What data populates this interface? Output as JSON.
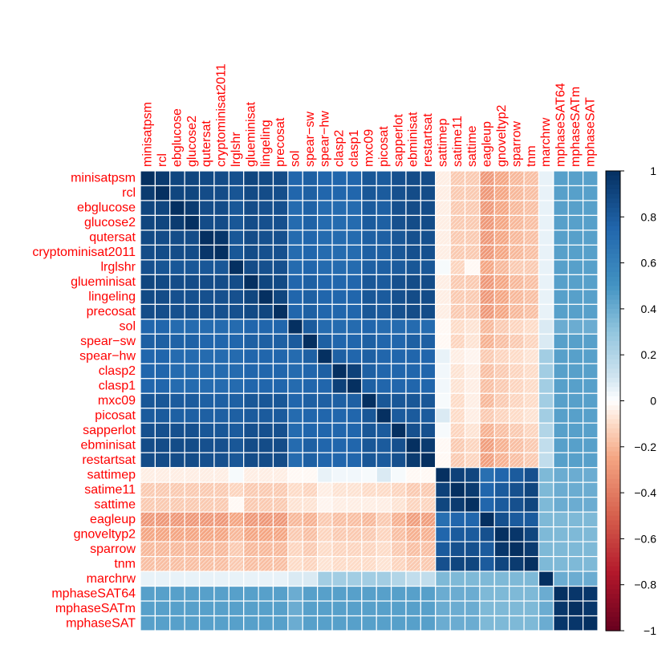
{
  "chart_data": {
    "type": "heatmap",
    "title": "",
    "labels": [
      "minisatpsm",
      "rcl",
      "ebglucose",
      "glucose2",
      "qutersat",
      "cryptominisat2011",
      "lrglshr",
      "glueminisat",
      "lingeling",
      "precosat",
      "sol",
      "spear−sw",
      "spear−hw",
      "clasp2",
      "clasp1",
      "mxc09",
      "picosat",
      "sapperlot",
      "ebminisat",
      "restartsat",
      "sattimep",
      "satime11",
      "sattime",
      "eagleup",
      "gnoveltyp2",
      "sparrow",
      "tnm",
      "marchrw",
      "mphaseSAT64",
      "mphaseSATm",
      "mphaseSAT"
    ],
    "colorbar": {
      "range": [
        -1,
        1
      ],
      "ticks": [
        1,
        0.8,
        0.6,
        0.4,
        0.2,
        0,
        -0.2,
        -0.4,
        -0.6,
        -0.8,
        -1
      ],
      "tick_labels": [
        "1",
        "0.8",
        "0.6",
        "0.4",
        "0.2",
        "0",
        "−0.2",
        "−0.4",
        "−0.6",
        "−0.8",
        "−1"
      ]
    },
    "colors": {
      "negative_end": "#67001f",
      "neutral": "#ffffff",
      "positive_end": "#053061",
      "label": "#ff0000",
      "grid": "#ffffff"
    },
    "negative_pattern": "diagonal-hatch",
    "matrix": [
      [
        1,
        0.95,
        0.9,
        0.9,
        0.88,
        0.87,
        0.85,
        0.9,
        0.88,
        0.87,
        0.75,
        0.78,
        0.75,
        0.75,
        0.75,
        0.82,
        0.8,
        0.85,
        0.87,
        0.87,
        -0.05,
        -0.15,
        -0.15,
        -0.3,
        -0.25,
        -0.2,
        -0.18,
        0.05,
        0.45,
        0.45,
        0.45
      ],
      [
        0.95,
        1,
        0.9,
        0.9,
        0.87,
        0.87,
        0.83,
        0.88,
        0.87,
        0.86,
        0.75,
        0.78,
        0.75,
        0.75,
        0.75,
        0.82,
        0.8,
        0.85,
        0.87,
        0.87,
        -0.05,
        -0.15,
        -0.15,
        -0.3,
        -0.25,
        -0.2,
        -0.18,
        0.05,
        0.45,
        0.45,
        0.45
      ],
      [
        0.9,
        0.9,
        1,
        0.95,
        0.87,
        0.87,
        0.82,
        0.87,
        0.85,
        0.85,
        0.72,
        0.77,
        0.72,
        0.72,
        0.72,
        0.8,
        0.78,
        0.85,
        0.87,
        0.87,
        -0.05,
        -0.15,
        -0.15,
        -0.3,
        -0.25,
        -0.2,
        -0.18,
        0.05,
        0.45,
        0.45,
        0.45
      ],
      [
        0.9,
        0.9,
        0.95,
        1,
        0.87,
        0.87,
        0.82,
        0.87,
        0.85,
        0.85,
        0.72,
        0.77,
        0.72,
        0.72,
        0.72,
        0.8,
        0.78,
        0.85,
        0.87,
        0.87,
        -0.05,
        -0.15,
        -0.15,
        -0.3,
        -0.25,
        -0.2,
        -0.18,
        0.05,
        0.45,
        0.45,
        0.45
      ],
      [
        0.88,
        0.87,
        0.87,
        0.87,
        1,
        0.97,
        0.82,
        0.87,
        0.85,
        0.85,
        0.72,
        0.75,
        0.72,
        0.72,
        0.72,
        0.78,
        0.78,
        0.82,
        0.85,
        0.85,
        -0.05,
        -0.15,
        -0.15,
        -0.3,
        -0.25,
        -0.2,
        -0.18,
        0.05,
        0.45,
        0.45,
        0.45
      ],
      [
        0.87,
        0.87,
        0.87,
        0.87,
        0.97,
        1,
        0.82,
        0.87,
        0.85,
        0.85,
        0.72,
        0.75,
        0.72,
        0.72,
        0.72,
        0.78,
        0.78,
        0.82,
        0.85,
        0.85,
        -0.05,
        -0.15,
        -0.15,
        -0.3,
        -0.25,
        -0.2,
        -0.18,
        0.05,
        0.45,
        0.45,
        0.45
      ],
      [
        0.85,
        0.83,
        0.82,
        0.82,
        0.82,
        0.82,
        1,
        0.87,
        0.85,
        0.85,
        0.72,
        0.75,
        0.72,
        0.72,
        0.72,
        0.78,
        0.78,
        0.8,
        0.82,
        0.82,
        0.02,
        -0.12,
        -0.02,
        -0.25,
        -0.2,
        -0.15,
        -0.15,
        0.05,
        0.45,
        0.45,
        0.45
      ],
      [
        0.9,
        0.88,
        0.87,
        0.87,
        0.87,
        0.87,
        0.87,
        1,
        0.9,
        0.88,
        0.75,
        0.78,
        0.75,
        0.75,
        0.75,
        0.82,
        0.8,
        0.85,
        0.87,
        0.87,
        -0.05,
        -0.15,
        -0.15,
        -0.3,
        -0.25,
        -0.2,
        -0.18,
        0.05,
        0.45,
        0.45,
        0.45
      ],
      [
        0.88,
        0.87,
        0.85,
        0.85,
        0.85,
        0.85,
        0.85,
        0.9,
        1,
        0.9,
        0.75,
        0.78,
        0.75,
        0.75,
        0.75,
        0.82,
        0.8,
        0.85,
        0.87,
        0.87,
        -0.05,
        -0.15,
        -0.15,
        -0.3,
        -0.25,
        -0.2,
        -0.18,
        0.05,
        0.45,
        0.45,
        0.45
      ],
      [
        0.87,
        0.86,
        0.85,
        0.85,
        0.85,
        0.85,
        0.85,
        0.88,
        0.9,
        1,
        0.75,
        0.78,
        0.75,
        0.75,
        0.75,
        0.82,
        0.8,
        0.85,
        0.87,
        0.87,
        -0.05,
        -0.15,
        -0.15,
        -0.3,
        -0.25,
        -0.2,
        -0.18,
        0.05,
        0.45,
        0.45,
        0.45
      ],
      [
        0.75,
        0.75,
        0.72,
        0.72,
        0.72,
        0.72,
        0.72,
        0.75,
        0.75,
        0.75,
        1,
        0.8,
        0.72,
        0.72,
        0.72,
        0.75,
        0.72,
        0.72,
        0.72,
        0.72,
        -0.02,
        -0.1,
        -0.08,
        -0.2,
        -0.15,
        -0.12,
        -0.1,
        0.08,
        0.4,
        0.4,
        0.4
      ],
      [
        0.78,
        0.78,
        0.77,
        0.77,
        0.75,
        0.75,
        0.75,
        0.78,
        0.78,
        0.78,
        0.8,
        1,
        0.78,
        0.75,
        0.75,
        0.78,
        0.75,
        0.75,
        0.78,
        0.78,
        -0.02,
        -0.12,
        -0.08,
        -0.22,
        -0.18,
        -0.15,
        -0.12,
        0.08,
        0.45,
        0.45,
        0.45
      ],
      [
        0.75,
        0.75,
        0.72,
        0.72,
        0.72,
        0.72,
        0.72,
        0.75,
        0.75,
        0.75,
        0.72,
        0.78,
        1,
        0.78,
        0.75,
        0.78,
        0.75,
        0.75,
        0.75,
        0.75,
        0.05,
        -0.05,
        -0.03,
        -0.15,
        -0.12,
        -0.1,
        -0.08,
        0.25,
        0.45,
        0.45,
        0.45
      ],
      [
        0.75,
        0.75,
        0.72,
        0.72,
        0.72,
        0.72,
        0.72,
        0.75,
        0.75,
        0.75,
        0.72,
        0.75,
        0.78,
        1,
        0.92,
        0.78,
        0.75,
        0.75,
        0.75,
        0.75,
        0.03,
        -0.08,
        -0.05,
        -0.18,
        -0.15,
        -0.12,
        -0.1,
        0.25,
        0.45,
        0.45,
        0.45
      ],
      [
        0.75,
        0.75,
        0.72,
        0.72,
        0.72,
        0.72,
        0.72,
        0.75,
        0.75,
        0.75,
        0.72,
        0.75,
        0.75,
        0.92,
        1,
        0.78,
        0.75,
        0.75,
        0.75,
        0.75,
        0.03,
        -0.08,
        -0.05,
        -0.18,
        -0.15,
        -0.12,
        -0.1,
        0.25,
        0.45,
        0.45,
        0.45
      ],
      [
        0.82,
        0.82,
        0.8,
        0.8,
        0.78,
        0.78,
        0.78,
        0.82,
        0.82,
        0.82,
        0.75,
        0.78,
        0.78,
        0.78,
        0.78,
        1,
        0.82,
        0.82,
        0.82,
        0.82,
        0.02,
        -0.1,
        -0.05,
        -0.2,
        -0.15,
        -0.12,
        -0.1,
        0.25,
        0.45,
        0.45,
        0.45
      ],
      [
        0.8,
        0.8,
        0.78,
        0.78,
        0.78,
        0.78,
        0.78,
        0.8,
        0.8,
        0.8,
        0.72,
        0.75,
        0.75,
        0.75,
        0.75,
        0.82,
        1,
        0.8,
        0.8,
        0.8,
        0.08,
        -0.1,
        -0.05,
        -0.15,
        -0.12,
        -0.1,
        -0.08,
        0.25,
        0.45,
        0.45,
        0.45
      ],
      [
        0.85,
        0.85,
        0.85,
        0.85,
        0.82,
        0.82,
        0.8,
        0.85,
        0.85,
        0.85,
        0.72,
        0.75,
        0.75,
        0.75,
        0.75,
        0.82,
        0.8,
        1,
        0.85,
        0.85,
        0.02,
        -0.12,
        -0.08,
        -0.22,
        -0.18,
        -0.15,
        -0.12,
        0.2,
        0.45,
        0.45,
        0.45
      ],
      [
        0.87,
        0.87,
        0.87,
        0.87,
        0.85,
        0.85,
        0.82,
        0.87,
        0.87,
        0.87,
        0.72,
        0.78,
        0.75,
        0.75,
        0.75,
        0.82,
        0.8,
        0.85,
        1,
        0.95,
        -0.02,
        -0.15,
        -0.12,
        -0.28,
        -0.22,
        -0.18,
        -0.15,
        0.15,
        0.45,
        0.45,
        0.45
      ],
      [
        0.87,
        0.87,
        0.87,
        0.87,
        0.85,
        0.85,
        0.82,
        0.87,
        0.87,
        0.87,
        0.72,
        0.78,
        0.75,
        0.75,
        0.75,
        0.82,
        0.8,
        0.85,
        0.95,
        1,
        -0.02,
        -0.15,
        -0.12,
        -0.28,
        -0.22,
        -0.18,
        -0.15,
        0.15,
        0.45,
        0.45,
        0.45
      ],
      [
        -0.05,
        -0.05,
        -0.05,
        -0.05,
        -0.05,
        -0.05,
        0.02,
        -0.05,
        -0.05,
        -0.05,
        -0.02,
        -0.02,
        0.05,
        0.03,
        0.03,
        0.02,
        0.08,
        0.02,
        -0.02,
        -0.02,
        1,
        0.92,
        0.9,
        0.7,
        0.75,
        0.8,
        0.85,
        0.35,
        0.4,
        0.4,
        0.4
      ],
      [
        -0.15,
        -0.15,
        -0.15,
        -0.15,
        -0.15,
        -0.15,
        -0.12,
        -0.15,
        -0.15,
        -0.15,
        -0.1,
        -0.12,
        -0.05,
        -0.08,
        -0.08,
        -0.1,
        -0.1,
        -0.12,
        -0.15,
        -0.15,
        0.92,
        1,
        0.95,
        0.75,
        0.8,
        0.85,
        0.9,
        0.35,
        0.4,
        0.4,
        0.4
      ],
      [
        -0.15,
        -0.15,
        -0.15,
        -0.15,
        -0.15,
        -0.15,
        -0.02,
        -0.15,
        -0.15,
        -0.15,
        -0.08,
        -0.08,
        -0.03,
        -0.05,
        -0.05,
        -0.05,
        -0.05,
        -0.08,
        -0.12,
        -0.12,
        0.9,
        0.95,
        1,
        0.75,
        0.8,
        0.85,
        0.9,
        0.35,
        0.4,
        0.4,
        0.4
      ],
      [
        -0.3,
        -0.3,
        -0.3,
        -0.3,
        -0.3,
        -0.3,
        -0.25,
        -0.3,
        -0.3,
        -0.3,
        -0.2,
        -0.22,
        -0.15,
        -0.18,
        -0.18,
        -0.2,
        -0.15,
        -0.22,
        -0.28,
        -0.28,
        0.7,
        0.75,
        0.75,
        1,
        0.85,
        0.8,
        0.8,
        0.35,
        0.35,
        0.35,
        0.35
      ],
      [
        -0.25,
        -0.25,
        -0.25,
        -0.25,
        -0.25,
        -0.25,
        -0.2,
        -0.25,
        -0.25,
        -0.25,
        -0.15,
        -0.18,
        -0.12,
        -0.15,
        -0.15,
        -0.15,
        -0.12,
        -0.18,
        -0.22,
        -0.22,
        0.75,
        0.8,
        0.8,
        0.85,
        1,
        0.97,
        0.9,
        0.35,
        0.35,
        0.35,
        0.35
      ],
      [
        -0.2,
        -0.2,
        -0.2,
        -0.2,
        -0.2,
        -0.2,
        -0.15,
        -0.2,
        -0.2,
        -0.2,
        -0.12,
        -0.15,
        -0.1,
        -0.12,
        -0.12,
        -0.12,
        -0.1,
        -0.15,
        -0.18,
        -0.18,
        0.8,
        0.85,
        0.85,
        0.8,
        0.97,
        1,
        0.95,
        0.35,
        0.35,
        0.35,
        0.35
      ],
      [
        -0.18,
        -0.18,
        -0.18,
        -0.18,
        -0.18,
        -0.18,
        -0.15,
        -0.18,
        -0.18,
        -0.18,
        -0.1,
        -0.12,
        -0.08,
        -0.1,
        -0.1,
        -0.1,
        -0.08,
        -0.12,
        -0.15,
        -0.15,
        0.85,
        0.9,
        0.9,
        0.8,
        0.9,
        0.95,
        1,
        0.35,
        0.35,
        0.35,
        0.35
      ],
      [
        0.05,
        0.05,
        0.05,
        0.05,
        0.05,
        0.05,
        0.05,
        0.05,
        0.05,
        0.05,
        0.08,
        0.08,
        0.25,
        0.25,
        0.25,
        0.25,
        0.25,
        0.2,
        0.15,
        0.15,
        0.35,
        0.35,
        0.35,
        0.35,
        0.35,
        0.35,
        0.35,
        1,
        0.4,
        0.4,
        0.4
      ],
      [
        0.45,
        0.45,
        0.45,
        0.45,
        0.45,
        0.45,
        0.45,
        0.45,
        0.45,
        0.45,
        0.4,
        0.45,
        0.45,
        0.45,
        0.45,
        0.45,
        0.45,
        0.45,
        0.45,
        0.45,
        0.4,
        0.4,
        0.4,
        0.35,
        0.35,
        0.35,
        0.35,
        0.4,
        1,
        0.97,
        0.97
      ],
      [
        0.45,
        0.45,
        0.45,
        0.45,
        0.45,
        0.45,
        0.45,
        0.45,
        0.45,
        0.45,
        0.4,
        0.45,
        0.45,
        0.45,
        0.45,
        0.45,
        0.45,
        0.45,
        0.45,
        0.45,
        0.4,
        0.4,
        0.4,
        0.35,
        0.35,
        0.35,
        0.35,
        0.4,
        0.97,
        1,
        0.97
      ],
      [
        0.45,
        0.45,
        0.45,
        0.45,
        0.45,
        0.45,
        0.45,
        0.45,
        0.45,
        0.45,
        0.4,
        0.45,
        0.45,
        0.45,
        0.45,
        0.45,
        0.45,
        0.45,
        0.45,
        0.45,
        0.4,
        0.4,
        0.4,
        0.35,
        0.35,
        0.35,
        0.35,
        0.4,
        0.97,
        0.97,
        1
      ]
    ]
  }
}
